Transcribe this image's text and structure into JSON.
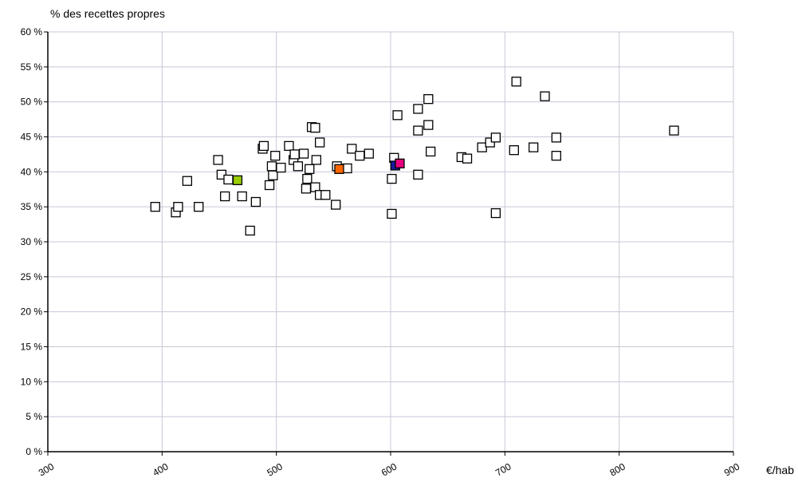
{
  "chart_data": {
    "type": "scatter",
    "title": "",
    "xlabel": "€/hab",
    "ylabel": "% des recettes propres",
    "xlim": [
      300,
      900
    ],
    "ylim": [
      0,
      60
    ],
    "grid": true,
    "x_ticks": [
      {
        "value": 300,
        "label": "300"
      },
      {
        "value": 400,
        "label": "400"
      },
      {
        "value": 500,
        "label": "500"
      },
      {
        "value": 600,
        "label": "600"
      },
      {
        "value": 700,
        "label": "700"
      },
      {
        "value": 800,
        "label": "800"
      },
      {
        "value": 900,
        "label": "900"
      }
    ],
    "y_ticks": [
      {
        "value": 0,
        "label": "0 %"
      },
      {
        "value": 5,
        "label": "5 %"
      },
      {
        "value": 10,
        "label": "10 %"
      },
      {
        "value": 15,
        "label": "15 %"
      },
      {
        "value": 20,
        "label": "20 %"
      },
      {
        "value": 25,
        "label": "25 %"
      },
      {
        "value": 30,
        "label": "30 %"
      },
      {
        "value": 35,
        "label": "35 %"
      },
      {
        "value": 40,
        "label": "40 %"
      },
      {
        "value": 45,
        "label": "45 %"
      },
      {
        "value": 50,
        "label": "50 %"
      },
      {
        "value": 55,
        "label": "55 %"
      },
      {
        "value": 60,
        "label": "60 %"
      }
    ],
    "series": [
      {
        "marker_color": "#ffffff",
        "points": [
          [
            394,
            35.0
          ],
          [
            412,
            34.2
          ],
          [
            414,
            35.0
          ],
          [
            422,
            38.7
          ],
          [
            432,
            35.0
          ],
          [
            449,
            41.7
          ],
          [
            452,
            39.6
          ],
          [
            455,
            36.5
          ],
          [
            458,
            38.9
          ],
          [
            470,
            36.5
          ],
          [
            477,
            31.6
          ],
          [
            482,
            35.7
          ],
          [
            488,
            43.3
          ],
          [
            489,
            43.7
          ],
          [
            494,
            38.1
          ],
          [
            496,
            40.8
          ],
          [
            497,
            39.5
          ],
          [
            499,
            42.3
          ],
          [
            504,
            40.6
          ],
          [
            511,
            43.7
          ],
          [
            515,
            41.7
          ],
          [
            516,
            42.5
          ],
          [
            519,
            40.8
          ],
          [
            524,
            42.6
          ],
          [
            526,
            37.6
          ],
          [
            527,
            39.0
          ],
          [
            529,
            40.4
          ],
          [
            531,
            46.4
          ],
          [
            534,
            46.3
          ],
          [
            534,
            37.8
          ],
          [
            535,
            41.7
          ],
          [
            538,
            44.2
          ],
          [
            538,
            36.7
          ],
          [
            543,
            36.7
          ],
          [
            552,
            35.3
          ],
          [
            553,
            40.8
          ],
          [
            562,
            40.5
          ],
          [
            566,
            43.3
          ],
          [
            573,
            42.3
          ],
          [
            581,
            42.6
          ],
          [
            601,
            39.0
          ],
          [
            601,
            34.0
          ],
          [
            603,
            42.0
          ],
          [
            606,
            48.1
          ],
          [
            624,
            39.6
          ],
          [
            624,
            45.9
          ],
          [
            624,
            49.0
          ],
          [
            633,
            46.7
          ],
          [
            633,
            50.4
          ],
          [
            635,
            42.9
          ],
          [
            662,
            42.1
          ],
          [
            667,
            41.9
          ],
          [
            680,
            43.5
          ],
          [
            687,
            44.2
          ],
          [
            692,
            44.9
          ],
          [
            692,
            34.1
          ],
          [
            710,
            52.9
          ],
          [
            708,
            43.1
          ],
          [
            725,
            43.5
          ],
          [
            735,
            50.8
          ],
          [
            745,
            44.9
          ],
          [
            745,
            42.3
          ],
          [
            848,
            45.9
          ]
        ]
      },
      {
        "marker_color": "#99cc00",
        "points": [
          [
            466,
            38.8
          ]
        ]
      },
      {
        "marker_color": "#ff6600",
        "points": [
          [
            555,
            40.4
          ]
        ]
      },
      {
        "marker_color": "#1a1a99",
        "points": [
          [
            604,
            40.9
          ]
        ]
      },
      {
        "marker_color": "#e6007e",
        "points": [
          [
            608,
            41.2
          ]
        ]
      }
    ],
    "colors": {
      "grid": "#c8c8d8",
      "axis": "#000000",
      "marker_stroke": "#000000"
    }
  }
}
